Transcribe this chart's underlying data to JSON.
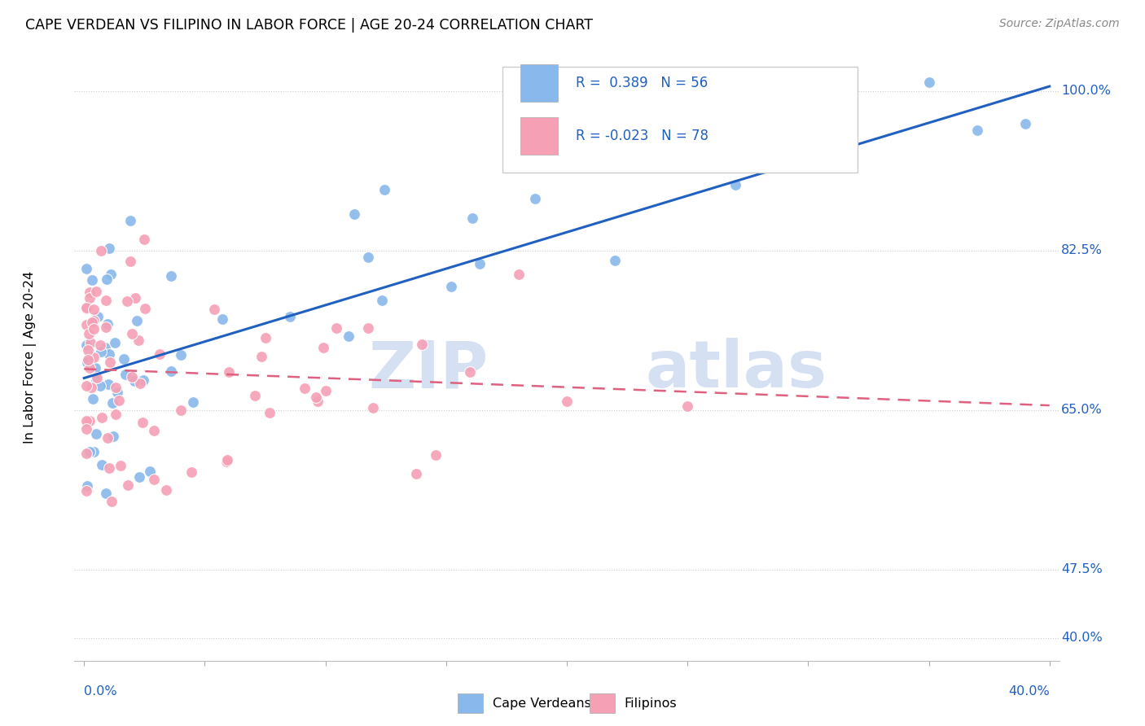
{
  "title": "CAPE VERDEAN VS FILIPINO IN LABOR FORCE | AGE 20-24 CORRELATION CHART",
  "source": "Source: ZipAtlas.com",
  "ylabel": "In Labor Force | Age 20-24",
  "watermark_zip": "ZIP",
  "watermark_atlas": "atlas",
  "blue_color": "#89B8EC",
  "pink_color": "#F5A0B5",
  "line_blue": "#2060C0",
  "line_pink": "#E06080",
  "legend_r1_label": "R =  0.389",
  "legend_n1_label": "N = 56",
  "legend_r2_label": "R = -0.023",
  "legend_n2_label": "N = 78",
  "ytick_vals": [
    0.4,
    0.475,
    0.65,
    0.825,
    1.0
  ],
  "ytick_labels": [
    "40.0%",
    "47.5%",
    "65.0%",
    "82.5%",
    "100.0%"
  ],
  "xlim": [
    0.0,
    0.4
  ],
  "ylim": [
    0.375,
    1.04
  ],
  "blue_line_x": [
    0.0,
    0.4
  ],
  "blue_line_y": [
    0.685,
    1.005
  ],
  "pink_line_x": [
    0.0,
    0.4
  ],
  "pink_line_y": [
    0.695,
    0.655
  ]
}
